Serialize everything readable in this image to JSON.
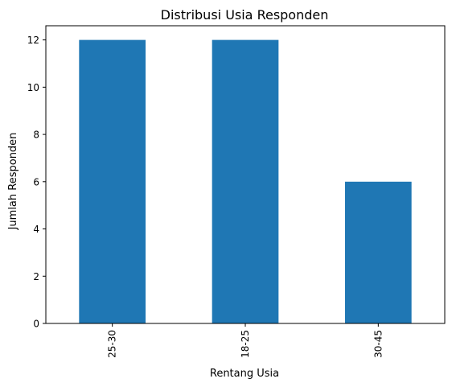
{
  "chart_data": {
    "type": "bar",
    "title": "Distribusi Usia Responden",
    "xlabel": "Rentang Usia",
    "ylabel": "Jumlah Responden",
    "categories": [
      "25-30",
      "18-25",
      "30-45"
    ],
    "values": [
      12,
      12,
      6
    ],
    "ylim": [
      0,
      12.6
    ],
    "yticks": [
      0,
      2,
      4,
      6,
      8,
      10,
      12
    ],
    "bar_color": "#1f77b4",
    "grid": false,
    "legend": "none"
  }
}
